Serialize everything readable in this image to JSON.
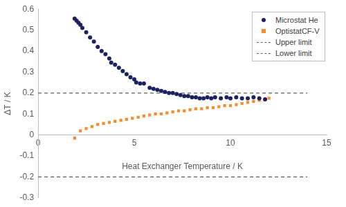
{
  "chart_data": {
    "type": "scatter",
    "xlabel": "Heat Exchanger Temperature / K",
    "ylabel": "ΔT / K",
    "xlim": [
      0,
      15
    ],
    "xticks": [
      0,
      5,
      10,
      15
    ],
    "ylim": [
      -0.3,
      0.6
    ],
    "yticks": [
      -0.3,
      -0.2,
      -0.1,
      0,
      0.1,
      0.2,
      0.3,
      0.4,
      0.5,
      0.6
    ],
    "grid": false,
    "legend": "top-right",
    "series": [
      {
        "name": "Microstat He",
        "color": "#1c2160",
        "marker": "circle",
        "type": "scatter",
        "x": [
          1.9,
          2.0,
          2.1,
          2.2,
          2.3,
          2.5,
          2.7,
          2.9,
          3.1,
          3.3,
          3.5,
          3.7,
          3.8,
          4.0,
          4.2,
          4.4,
          4.6,
          4.8,
          5.0,
          5.1,
          5.3,
          5.5,
          5.8,
          6.0,
          6.2,
          6.4,
          6.6,
          6.8,
          7.0,
          7.2,
          7.4,
          7.6,
          7.8,
          8.0,
          8.2,
          8.4,
          8.6,
          8.8,
          9.0,
          9.2,
          9.5,
          9.8,
          10.0,
          10.3,
          10.6,
          10.9,
          11.2,
          11.5,
          11.8
        ],
        "values": [
          0.555,
          0.545,
          0.535,
          0.525,
          0.51,
          0.49,
          0.465,
          0.445,
          0.42,
          0.4,
          0.385,
          0.365,
          0.345,
          0.335,
          0.32,
          0.305,
          0.29,
          0.275,
          0.265,
          0.25,
          0.245,
          0.245,
          0.225,
          0.22,
          0.215,
          0.21,
          0.205,
          0.2,
          0.2,
          0.195,
          0.19,
          0.185,
          0.185,
          0.18,
          0.18,
          0.175,
          0.175,
          0.18,
          0.175,
          0.18,
          0.175,
          0.18,
          0.175,
          0.18,
          0.175,
          0.175,
          0.18,
          0.175,
          0.17
        ]
      },
      {
        "name": "OptistatCF-V",
        "color": "#f58c2d",
        "marker": "square",
        "type": "scatter",
        "x": [
          1.9,
          2.2,
          2.5,
          2.8,
          3.1,
          3.4,
          3.7,
          4.0,
          4.3,
          4.6,
          4.9,
          5.2,
          5.5,
          5.8,
          6.1,
          6.4,
          6.7,
          7.0,
          7.3,
          7.6,
          7.9,
          8.2,
          8.5,
          8.8,
          9.1,
          9.4,
          9.7,
          10.0,
          10.3,
          10.6,
          10.9,
          11.2,
          11.5,
          11.8,
          12.0
        ],
        "values": [
          -0.015,
          0.02,
          0.03,
          0.04,
          0.05,
          0.055,
          0.06,
          0.065,
          0.07,
          0.075,
          0.08,
          0.085,
          0.09,
          0.095,
          0.1,
          0.1,
          0.105,
          0.11,
          0.115,
          0.115,
          0.12,
          0.125,
          0.125,
          0.13,
          0.13,
          0.135,
          0.14,
          0.14,
          0.145,
          0.15,
          0.155,
          0.16,
          0.165,
          0.17,
          0.175
        ]
      },
      {
        "name": "Upper limit",
        "color": "#595959",
        "marker": "none",
        "type": "line",
        "line_style": "dashed",
        "x": [
          0,
          14
        ],
        "values": [
          0.2,
          0.2
        ]
      },
      {
        "name": "Lower limit",
        "color": "#595959",
        "marker": "none",
        "type": "line",
        "line_style": "dashed",
        "x": [
          0,
          14
        ],
        "values": [
          -0.2,
          -0.2
        ]
      }
    ]
  }
}
